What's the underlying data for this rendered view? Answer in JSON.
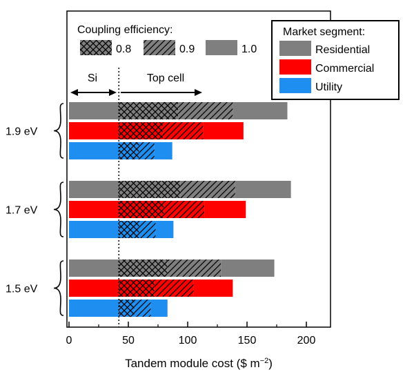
{
  "chart_data": {
    "type": "bar",
    "orientation": "horizontal",
    "stacked": true,
    "xlabel": "Tandem module cost ($ m",
    "xlabel_sup": "−2",
    "xlabel_close": ")",
    "xlim": [
      0,
      220
    ],
    "xticks": [
      0,
      50,
      100,
      150,
      200
    ],
    "si_cost": 42,
    "group_labels": [
      "1.9 eV",
      "1.7 eV",
      "1.5 eV"
    ],
    "annotations": {
      "si": "Si",
      "top_cell": "Top cell"
    },
    "coupling_legend": {
      "title": "Coupling efficiency:",
      "items": [
        {
          "label": "0.8",
          "pattern": "crosshatch"
        },
        {
          "label": "0.9",
          "pattern": "diagonal"
        },
        {
          "label": "1.0",
          "pattern": "solid"
        }
      ]
    },
    "market_legend": {
      "title": "Market segment:",
      "items": [
        {
          "label": "Residential",
          "color": "#7f7f7f"
        },
        {
          "label": "Commercial",
          "color": "#ff0000"
        },
        {
          "label": "Utility",
          "color": "#1e8ff0"
        }
      ]
    },
    "groups": [
      {
        "label": "1.9 eV",
        "bars": [
          {
            "segment": "Residential",
            "e08": 92,
            "e09": 138,
            "e10": 184
          },
          {
            "segment": "Commercial",
            "e08": 79,
            "e09": 113,
            "e10": 147
          },
          {
            "segment": "Utility",
            "e08": 59,
            "e09": 72,
            "e10": 87
          }
        ]
      },
      {
        "label": "1.7 eV",
        "bars": [
          {
            "segment": "Residential",
            "e08": 94,
            "e09": 140,
            "e10": 187
          },
          {
            "segment": "Commercial",
            "e08": 80,
            "e09": 114,
            "e10": 149
          },
          {
            "segment": "Utility",
            "e08": 59,
            "e09": 73,
            "e10": 88
          }
        ]
      },
      {
        "label": "1.5 eV",
        "bars": [
          {
            "segment": "Residential",
            "e08": 83,
            "e09": 128,
            "e10": 173
          },
          {
            "segment": "Commercial",
            "e08": 72,
            "e09": 105,
            "e10": 138
          },
          {
            "segment": "Utility",
            "e08": 55,
            "e09": 69,
            "e10": 83
          }
        ]
      }
    ]
  }
}
